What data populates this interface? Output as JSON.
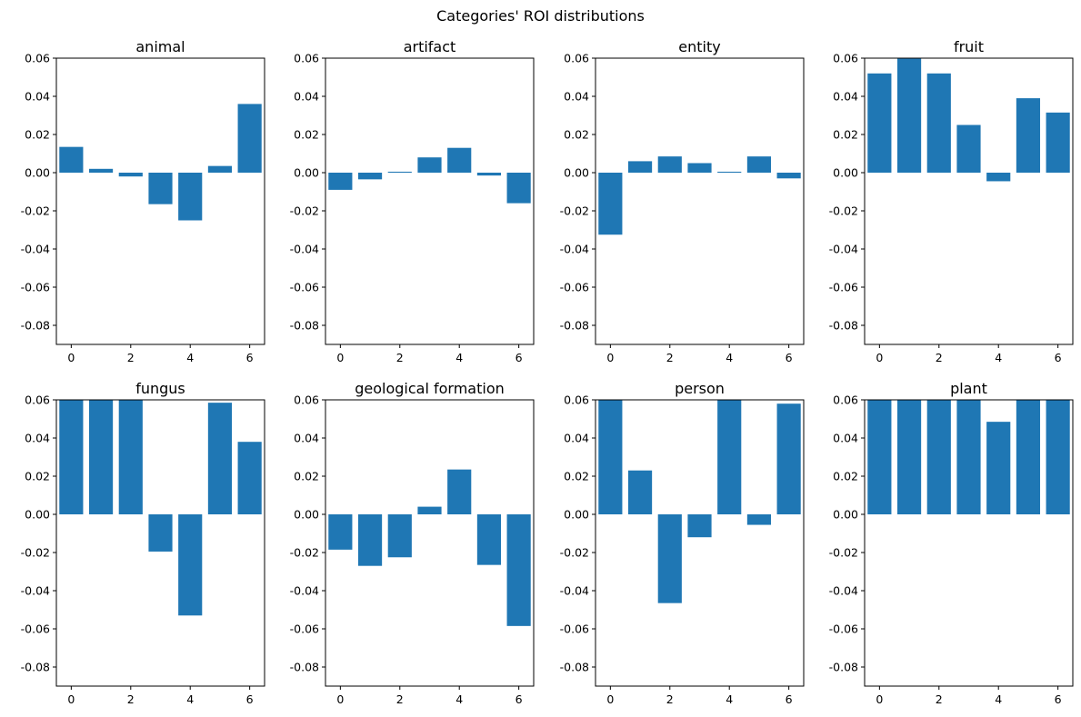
{
  "figure": {
    "suptitle": "Categories' ROI distributions"
  },
  "chart_data": [
    {
      "type": "bar",
      "title": "animal",
      "x": [
        0,
        1,
        2,
        3,
        4,
        5,
        6
      ],
      "values": [
        0.0135,
        0.002,
        -0.002,
        -0.0165,
        -0.025,
        0.0035,
        0.036
      ],
      "ylim": [
        -0.09,
        0.06
      ],
      "xticks": [
        "0",
        "2",
        "4",
        "6"
      ],
      "yticks": [
        "0.06",
        "0.04",
        "0.02",
        "0.00",
        "-0.02",
        "-0.04",
        "-0.06",
        "-0.08"
      ],
      "color": "#1f77b4"
    },
    {
      "type": "bar",
      "title": "artifact",
      "x": [
        0,
        1,
        2,
        3,
        4,
        5,
        6
      ],
      "values": [
        -0.009,
        -0.0035,
        0.0005,
        0.008,
        0.013,
        -0.0015,
        -0.016
      ],
      "ylim": [
        -0.09,
        0.06
      ],
      "xticks": [
        "0",
        "2",
        "4",
        "6"
      ],
      "yticks": [
        "0.06",
        "0.04",
        "0.02",
        "0.00",
        "-0.02",
        "-0.04",
        "-0.06",
        "-0.08"
      ],
      "color": "#1f77b4"
    },
    {
      "type": "bar",
      "title": "entity",
      "x": [
        0,
        1,
        2,
        3,
        4,
        5,
        6
      ],
      "values": [
        -0.0325,
        0.006,
        0.0085,
        0.005,
        0.0005,
        0.0085,
        -0.003
      ],
      "ylim": [
        -0.09,
        0.06
      ],
      "xticks": [
        "0",
        "2",
        "4",
        "6"
      ],
      "yticks": [
        "0.06",
        "0.04",
        "0.02",
        "0.00",
        "-0.02",
        "-0.04",
        "-0.06",
        "-0.08"
      ],
      "color": "#1f77b4"
    },
    {
      "type": "bar",
      "title": "fruit",
      "x": [
        0,
        1,
        2,
        3,
        4,
        5,
        6
      ],
      "values": [
        0.052,
        0.06,
        0.052,
        0.025,
        -0.0045,
        0.039,
        0.0315
      ],
      "ylim": [
        -0.09,
        0.06
      ],
      "xticks": [
        "0",
        "2",
        "4",
        "6"
      ],
      "yticks": [
        "0.06",
        "0.04",
        "0.02",
        "0.00",
        "-0.02",
        "-0.04",
        "-0.06",
        "-0.08"
      ],
      "color": "#1f77b4"
    },
    {
      "type": "bar",
      "title": "fungus",
      "x": [
        0,
        1,
        2,
        3,
        4,
        5,
        6
      ],
      "values": [
        0.06,
        0.06,
        0.06,
        -0.0195,
        -0.053,
        0.0585,
        0.038
      ],
      "ylim": [
        -0.09,
        0.06
      ],
      "xticks": [
        "0",
        "2",
        "4",
        "6"
      ],
      "yticks": [
        "0.06",
        "0.04",
        "0.02",
        "0.00",
        "-0.02",
        "-0.04",
        "-0.06",
        "-0.08"
      ],
      "color": "#1f77b4"
    },
    {
      "type": "bar",
      "title": "geological formation",
      "x": [
        0,
        1,
        2,
        3,
        4,
        5,
        6
      ],
      "values": [
        -0.0185,
        -0.027,
        -0.0225,
        0.004,
        0.0235,
        -0.0265,
        -0.0585
      ],
      "ylim": [
        -0.09,
        0.06
      ],
      "xticks": [
        "0",
        "2",
        "4",
        "6"
      ],
      "yticks": [
        "0.06",
        "0.04",
        "0.02",
        "0.00",
        "-0.02",
        "-0.04",
        "-0.06",
        "-0.08"
      ],
      "color": "#1f77b4"
    },
    {
      "type": "bar",
      "title": "person",
      "x": [
        0,
        1,
        2,
        3,
        4,
        5,
        6
      ],
      "values": [
        0.06,
        0.023,
        -0.0465,
        -0.012,
        0.06,
        -0.0055,
        0.058
      ],
      "ylim": [
        -0.09,
        0.06
      ],
      "xticks": [
        "0",
        "2",
        "4",
        "6"
      ],
      "yticks": [
        "0.06",
        "0.04",
        "0.02",
        "0.00",
        "-0.02",
        "-0.04",
        "-0.06",
        "-0.08"
      ],
      "color": "#1f77b4"
    },
    {
      "type": "bar",
      "title": "plant",
      "x": [
        0,
        1,
        2,
        3,
        4,
        5,
        6
      ],
      "values": [
        0.06,
        0.06,
        0.06,
        0.06,
        0.0485,
        0.06,
        0.06
      ],
      "ylim": [
        -0.09,
        0.06
      ],
      "xticks": [
        "0",
        "2",
        "4",
        "6"
      ],
      "yticks": [
        "0.06",
        "0.04",
        "0.02",
        "0.00",
        "-0.02",
        "-0.04",
        "-0.06",
        "-0.08"
      ],
      "color": "#1f77b4"
    }
  ]
}
